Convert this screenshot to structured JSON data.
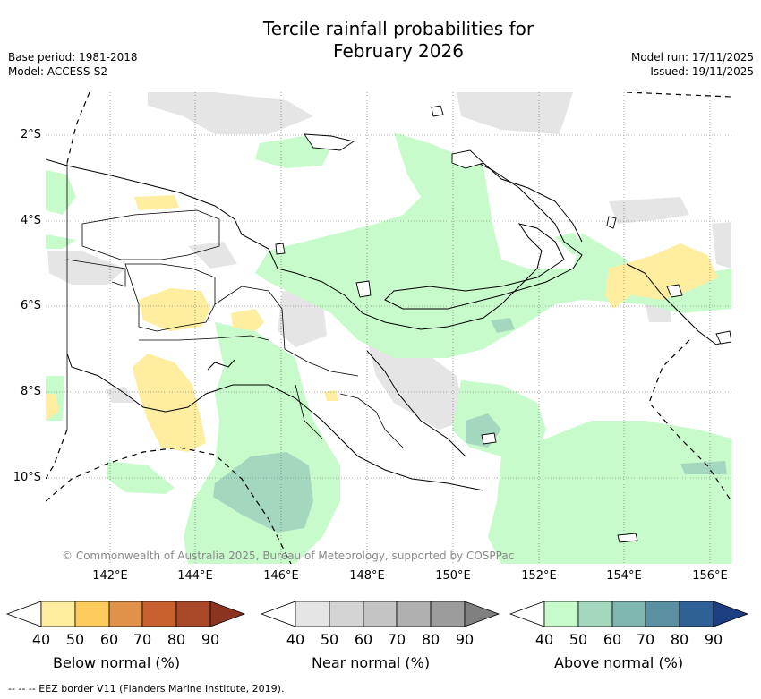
{
  "title_line1": "Tercile rainfall probabilities for",
  "title_line2": "February 2026",
  "base_period": "Base period: 1981-2018",
  "model": "Model: ACCESS-S2",
  "model_run": "Model run: 17/11/2025",
  "issued": "Issued: 19/11/2025",
  "lat_labels": [
    "2°S",
    "4°S",
    "6°S",
    "8°S",
    "10°S"
  ],
  "lon_labels": [
    "142°E",
    "144°E",
    "146°E",
    "148°E",
    "150°E",
    "152°E",
    "154°E",
    "156°E"
  ],
  "copyright": "© Commonwealth of Australia 2025, Bureau of Meteorology, supported by COSPPac",
  "legends": [
    {
      "label": "Below normal (%)",
      "ticks": [
        "40",
        "50",
        "60",
        "70",
        "80",
        "90"
      ],
      "colors": [
        "#ffffff",
        "#ffeda0",
        "#fecc5c",
        "#e0914a",
        "#c8602f",
        "#a9492a",
        "#8c3321"
      ]
    },
    {
      "label": "Near normal (%)",
      "ticks": [
        "40",
        "50",
        "60",
        "70",
        "80",
        "90"
      ],
      "colors": [
        "#ffffff",
        "#e5e5e5",
        "#d4d4d4",
        "#c4c4c4",
        "#b0b0b0",
        "#9c9c9c",
        "#808080"
      ]
    },
    {
      "label": "Above normal (%)",
      "ticks": [
        "40",
        "50",
        "60",
        "70",
        "80",
        "90"
      ],
      "colors": [
        "#ffffff",
        "#c8fbcb",
        "#a3d8bf",
        "#7fb6b0",
        "#5a90a2",
        "#2f6196",
        "#1c3f82"
      ]
    }
  ],
  "eez_note": "--  --  -- EEZ border V11 (Flanders Marine Institute, 2019)."
}
